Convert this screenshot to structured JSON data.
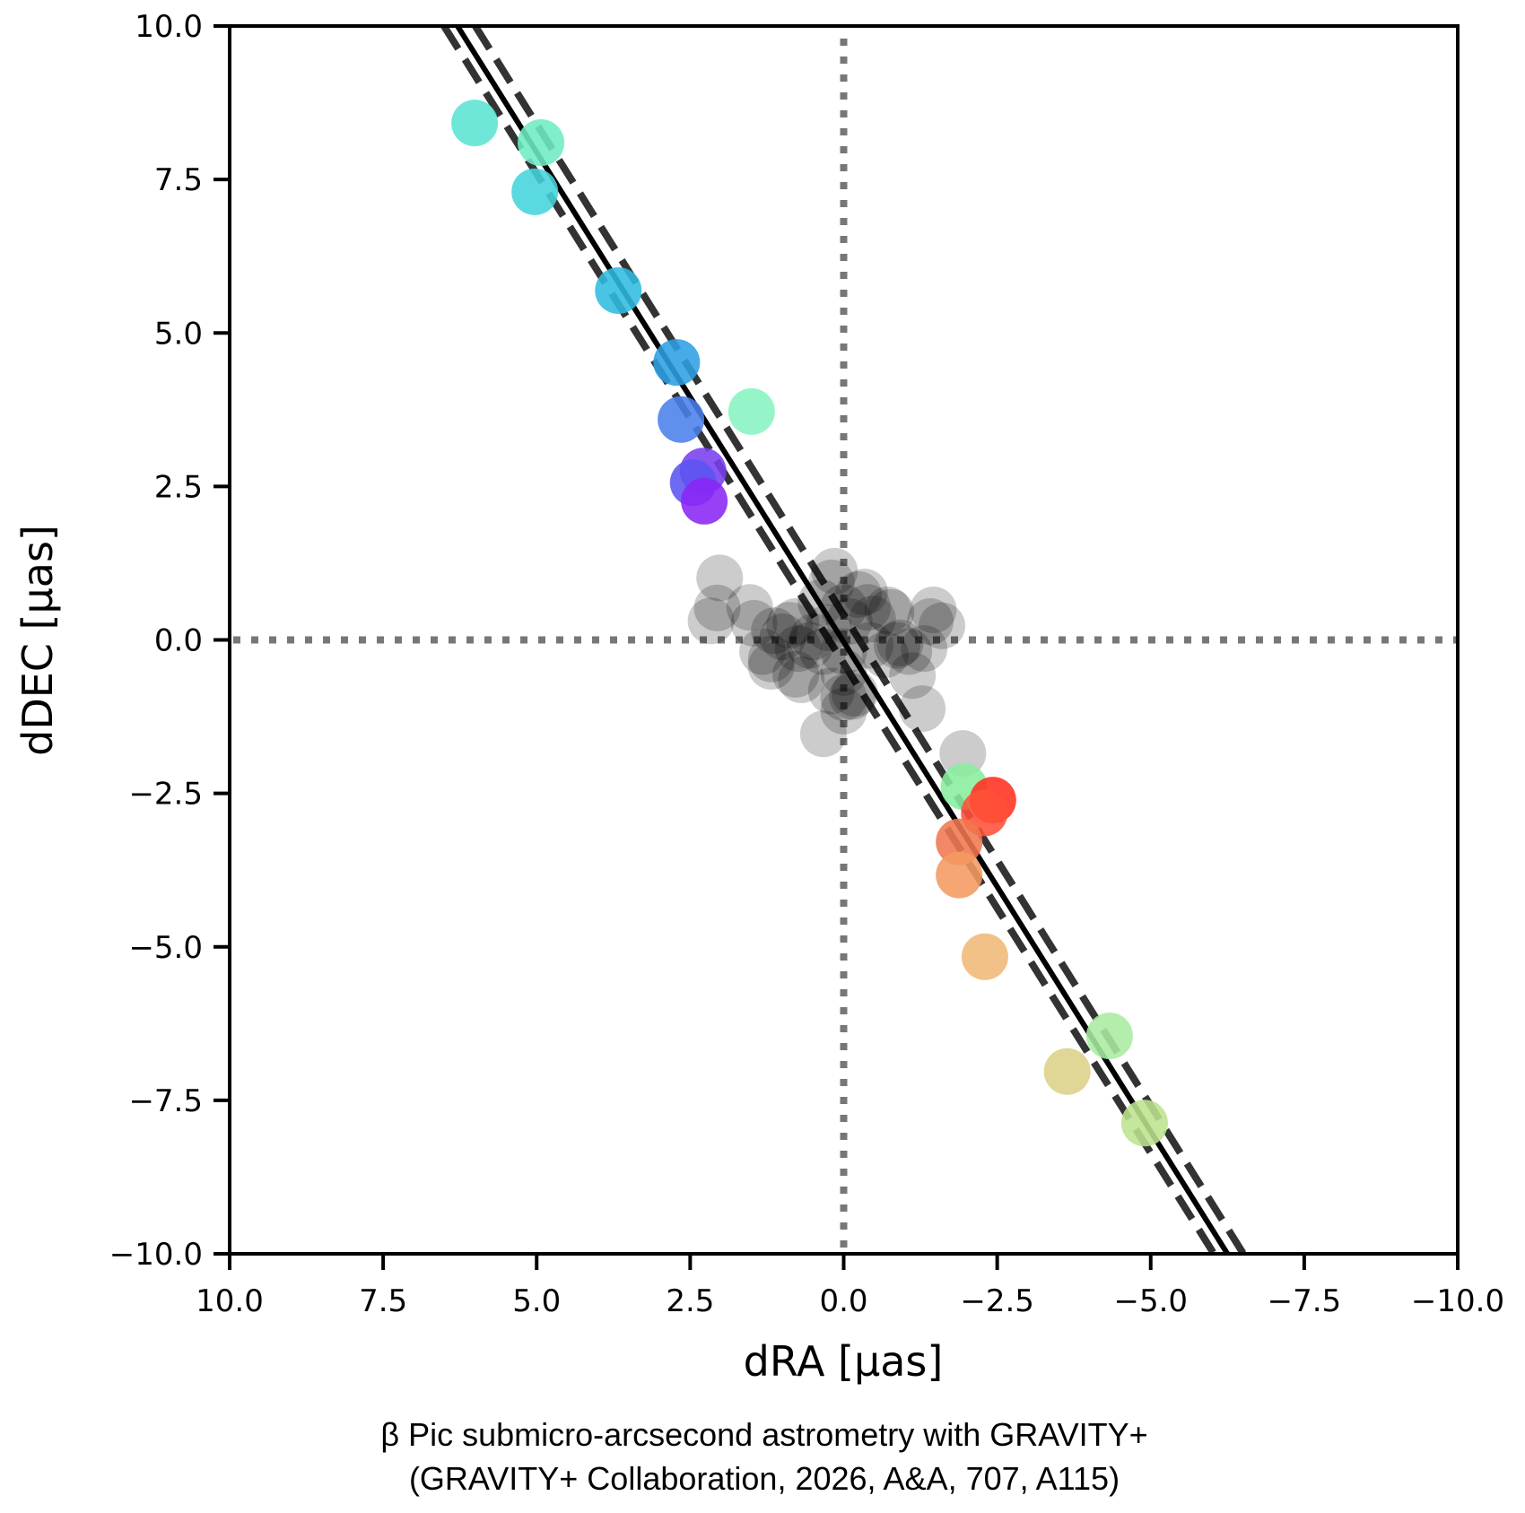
{
  "chart_data": {
    "type": "scatter",
    "xlabel": "dRA [μas]",
    "ylabel": "dDEC [μas]",
    "xlim": [
      10.0,
      -10.0
    ],
    "ylim": [
      -10.0,
      10.0
    ],
    "x_inverted": true,
    "grid": false,
    "legend": "none",
    "xticks": [
      "10.0",
      "7.5",
      "5.0",
      "2.5",
      "0.0",
      "−2.5",
      "−5.0",
      "−7.5",
      "−10.0"
    ],
    "xtick_values": [
      10.0,
      7.5,
      5.0,
      2.5,
      0.0,
      -2.5,
      -5.0,
      -7.5,
      -10.0
    ],
    "yticks": [
      "10.0",
      "7.5",
      "5.0",
      "2.5",
      "0.0",
      "−2.5",
      "−5.0",
      "−7.5",
      "−10.0"
    ],
    "ytick_values": [
      10.0,
      7.5,
      5.0,
      2.5,
      0.0,
      -2.5,
      -5.0,
      -7.5,
      -10.0
    ],
    "reference_lines": [
      {
        "name": "zero-dRA",
        "orientation": "vertical",
        "value": 0.0,
        "style": "dotted",
        "color": "#777777"
      },
      {
        "name": "zero-dDEC",
        "orientation": "horizontal",
        "value": 0.0,
        "style": "dotted",
        "color": "#777777"
      }
    ],
    "fit_lines": [
      {
        "name": "best-fit",
        "style": "solid",
        "color": "#000000",
        "points": [
          [
            6.29,
            10.0
          ],
          [
            -6.25,
            -10.0
          ]
        ]
      },
      {
        "name": "fit-bound-1",
        "style": "dashed",
        "color": "#333333",
        "points": [
          [
            6.51,
            10.0
          ],
          [
            -6.03,
            -10.0
          ]
        ]
      },
      {
        "name": "fit-bound-2",
        "style": "dashed",
        "color": "#333333",
        "points": [
          [
            6.0,
            10.0
          ],
          [
            -6.51,
            -10.0
          ]
        ]
      }
    ],
    "series": [
      {
        "name": "colored-epochs",
        "points": [
          {
            "x": 6.01,
            "y": 8.42,
            "color": "#5ae4d4"
          },
          {
            "x": 4.93,
            "y": 8.1,
            "color": "#6eecc4"
          },
          {
            "x": 5.03,
            "y": 7.3,
            "color": "#44d4dc"
          },
          {
            "x": 3.67,
            "y": 5.69,
            "color": "#30bce0"
          },
          {
            "x": 2.72,
            "y": 4.52,
            "color": "#2c9fe4"
          },
          {
            "x": 2.65,
            "y": 3.59,
            "color": "#4a80ec"
          },
          {
            "x": 1.5,
            "y": 3.72,
            "color": "#87f4c0"
          },
          {
            "x": 2.29,
            "y": 2.75,
            "color": "#7a3ff0"
          },
          {
            "x": 2.45,
            "y": 2.56,
            "color": "#5a55f0"
          },
          {
            "x": 2.27,
            "y": 2.26,
            "color": "#8a25f5"
          },
          {
            "x": -1.96,
            "y": -2.39,
            "color": "#88ee9e"
          },
          {
            "x": -2.43,
            "y": -2.61,
            "color": "#ff3020"
          },
          {
            "x": -2.29,
            "y": -2.82,
            "color": "#ff5038"
          },
          {
            "x": -1.88,
            "y": -3.29,
            "color": "#f07850"
          },
          {
            "x": -1.88,
            "y": -3.83,
            "color": "#f49a60"
          },
          {
            "x": -2.3,
            "y": -5.16,
            "color": "#f0b878"
          },
          {
            "x": -4.33,
            "y": -6.45,
            "color": "#a8eca0"
          },
          {
            "x": -3.64,
            "y": -7.03,
            "color": "#dcd288"
          },
          {
            "x": -4.9,
            "y": -7.87,
            "color": "#bce290"
          }
        ]
      },
      {
        "name": "reference-cluster",
        "color": "#000000",
        "points": [
          {
            "x": 2.02,
            "y": 1.01
          },
          {
            "x": 2.06,
            "y": 0.52
          },
          {
            "x": 2.16,
            "y": 0.31
          },
          {
            "x": 1.53,
            "y": 0.53
          },
          {
            "x": 1.46,
            "y": 0.27
          },
          {
            "x": 1.18,
            "y": -0.31
          },
          {
            "x": 1.13,
            "y": 0.15
          },
          {
            "x": 0.88,
            "y": 0.24
          },
          {
            "x": 0.78,
            "y": -0.56
          },
          {
            "x": 0.55,
            "y": -0.09
          },
          {
            "x": 1.18,
            "y": -0.43
          },
          {
            "x": 0.69,
            "y": -0.65
          },
          {
            "x": 0.15,
            "y": 1.12
          },
          {
            "x": 0.2,
            "y": 0.93
          },
          {
            "x": 0.37,
            "y": 0.61
          },
          {
            "x": -0.24,
            "y": 0.74
          },
          {
            "x": -0.34,
            "y": 0.78
          },
          {
            "x": -0.77,
            "y": 0.45
          },
          {
            "x": -0.72,
            "y": 0.49
          },
          {
            "x": -1.46,
            "y": 0.49
          },
          {
            "x": -1.41,
            "y": 0.3
          },
          {
            "x": -1.6,
            "y": 0.23
          },
          {
            "x": -1.31,
            "y": -0.14
          },
          {
            "x": -1.12,
            "y": -0.58
          },
          {
            "x": -1.28,
            "y": -1.12
          },
          {
            "x": -0.92,
            "y": -0.05
          },
          {
            "x": -0.68,
            "y": -0.24
          },
          {
            "x": -0.14,
            "y": -0.92
          },
          {
            "x": 0.0,
            "y": -1.16
          },
          {
            "x": 0.33,
            "y": -1.53
          },
          {
            "x": 0.0,
            "y": -0.94
          },
          {
            "x": 0.2,
            "y": -0.83
          },
          {
            "x": 0.74,
            "y": -0.14
          },
          {
            "x": 0.99,
            "y": 0.05
          },
          {
            "x": 0.49,
            "y": 0.05
          },
          {
            "x": 0.25,
            "y": 0.2
          },
          {
            "x": -0.09,
            "y": 0.3
          },
          {
            "x": -0.47,
            "y": 0.34
          },
          {
            "x": -0.43,
            "y": -0.09
          },
          {
            "x": -0.87,
            "y": -0.09
          },
          {
            "x": -1.06,
            "y": -0.19
          },
          {
            "x": 0.0,
            "y": -0.19
          },
          {
            "x": 0.34,
            "y": -0.19
          },
          {
            "x": 0.0,
            "y": 0.53
          },
          {
            "x": -0.39,
            "y": 0.53
          },
          {
            "x": 1.32,
            "y": -0.19
          },
          {
            "x": 0.78,
            "y": 0.3
          },
          {
            "x": 0.0,
            "y": -0.53
          },
          {
            "x": -0.18,
            "y": -0.87
          },
          {
            "x": -1.94,
            "y": -1.85
          }
        ]
      }
    ]
  },
  "caption": {
    "line1": "β Pic submicro-arcsecond astrometry with GRAVITY+",
    "line2": "(GRAVITY+ Collaboration, 2026,  A&A, 707, A115)"
  }
}
